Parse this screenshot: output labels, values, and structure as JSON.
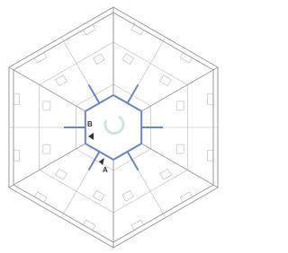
{
  "plan": {
    "labels": {
      "b": "B",
      "a": "A"
    }
  }
}
